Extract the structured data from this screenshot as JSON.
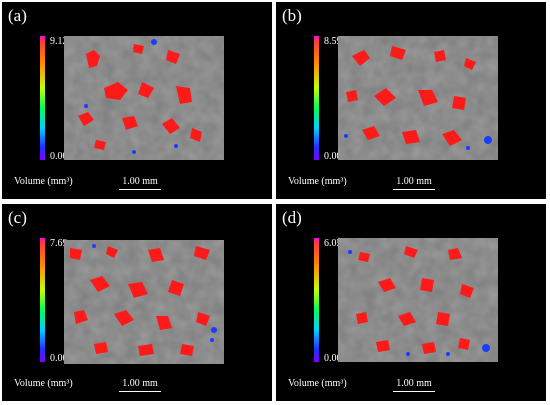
{
  "panels": [
    {
      "label": "(a)",
      "max": "9.12",
      "min": "0.00",
      "volume_label": "Volume (mm³)",
      "scale_label": "1.00 mm"
    },
    {
      "label": "(b)",
      "max": "8.59",
      "min": "0.00",
      "volume_label": "Volume (mm³)",
      "scale_label": "1.00 mm"
    },
    {
      "label": "(c)",
      "max": "7.69",
      "min": "0.00",
      "volume_label": "Volume (mm³)",
      "scale_label": "1.00 mm"
    },
    {
      "label": "(d)",
      "max": "6.05",
      "min": "0.00",
      "volume_label": "Volume (mm³)",
      "scale_label": "1.00 mm"
    }
  ],
  "colors": {
    "pore": "#ff1a1a",
    "small_pore": "#1a3cff",
    "background": "#000000",
    "matrix": "#7a7a7a"
  }
}
